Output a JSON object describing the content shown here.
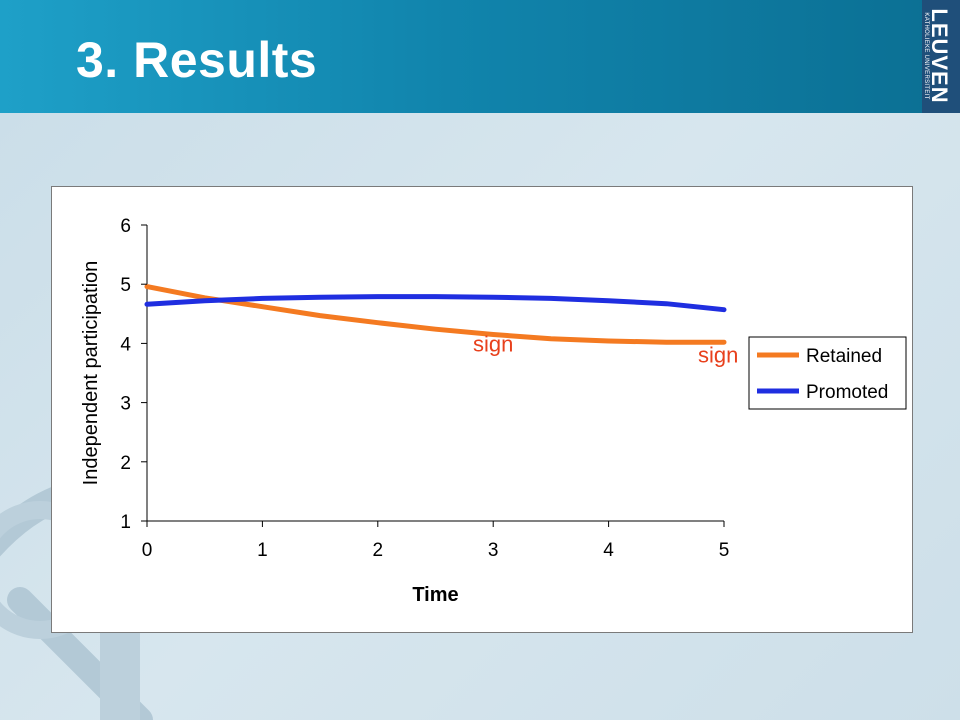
{
  "slide": {
    "title": "3. Results",
    "logo_main": "LEUVEN",
    "logo_sub": "KATHOLIEKE UNIVERSITEIT"
  },
  "colors": {
    "retained": "#f47a21",
    "promoted": "#1f2ee0",
    "annotation": "#e8401c"
  },
  "chart_data": {
    "type": "line",
    "xlabel": "Time",
    "ylabel": "Independent participation",
    "xlim": [
      0,
      5
    ],
    "ylim": [
      1,
      6
    ],
    "x_ticks": [
      0,
      1,
      2,
      3,
      4,
      5
    ],
    "y_ticks": [
      1,
      2,
      3,
      4,
      5,
      6
    ],
    "legend_position": "right",
    "series": [
      {
        "name": "Retained",
        "x": [
          0,
          0.5,
          1,
          1.5,
          2,
          2.5,
          3,
          3.5,
          4,
          4.5,
          5
        ],
        "values": [
          4.96,
          4.77,
          4.62,
          4.47,
          4.35,
          4.24,
          4.15,
          4.08,
          4.04,
          4.02,
          4.02
        ]
      },
      {
        "name": "Promoted",
        "x": [
          0,
          0.5,
          1,
          1.5,
          2,
          2.5,
          3,
          3.5,
          4,
          4.5,
          5
        ],
        "values": [
          4.66,
          4.72,
          4.76,
          4.78,
          4.79,
          4.79,
          4.78,
          4.76,
          4.72,
          4.67,
          4.57
        ]
      }
    ],
    "annotations": [
      {
        "text": "sign",
        "x": 3.0,
        "y": 3.86
      },
      {
        "text": "sign",
        "x": 4.95,
        "y": 3.68
      }
    ]
  }
}
